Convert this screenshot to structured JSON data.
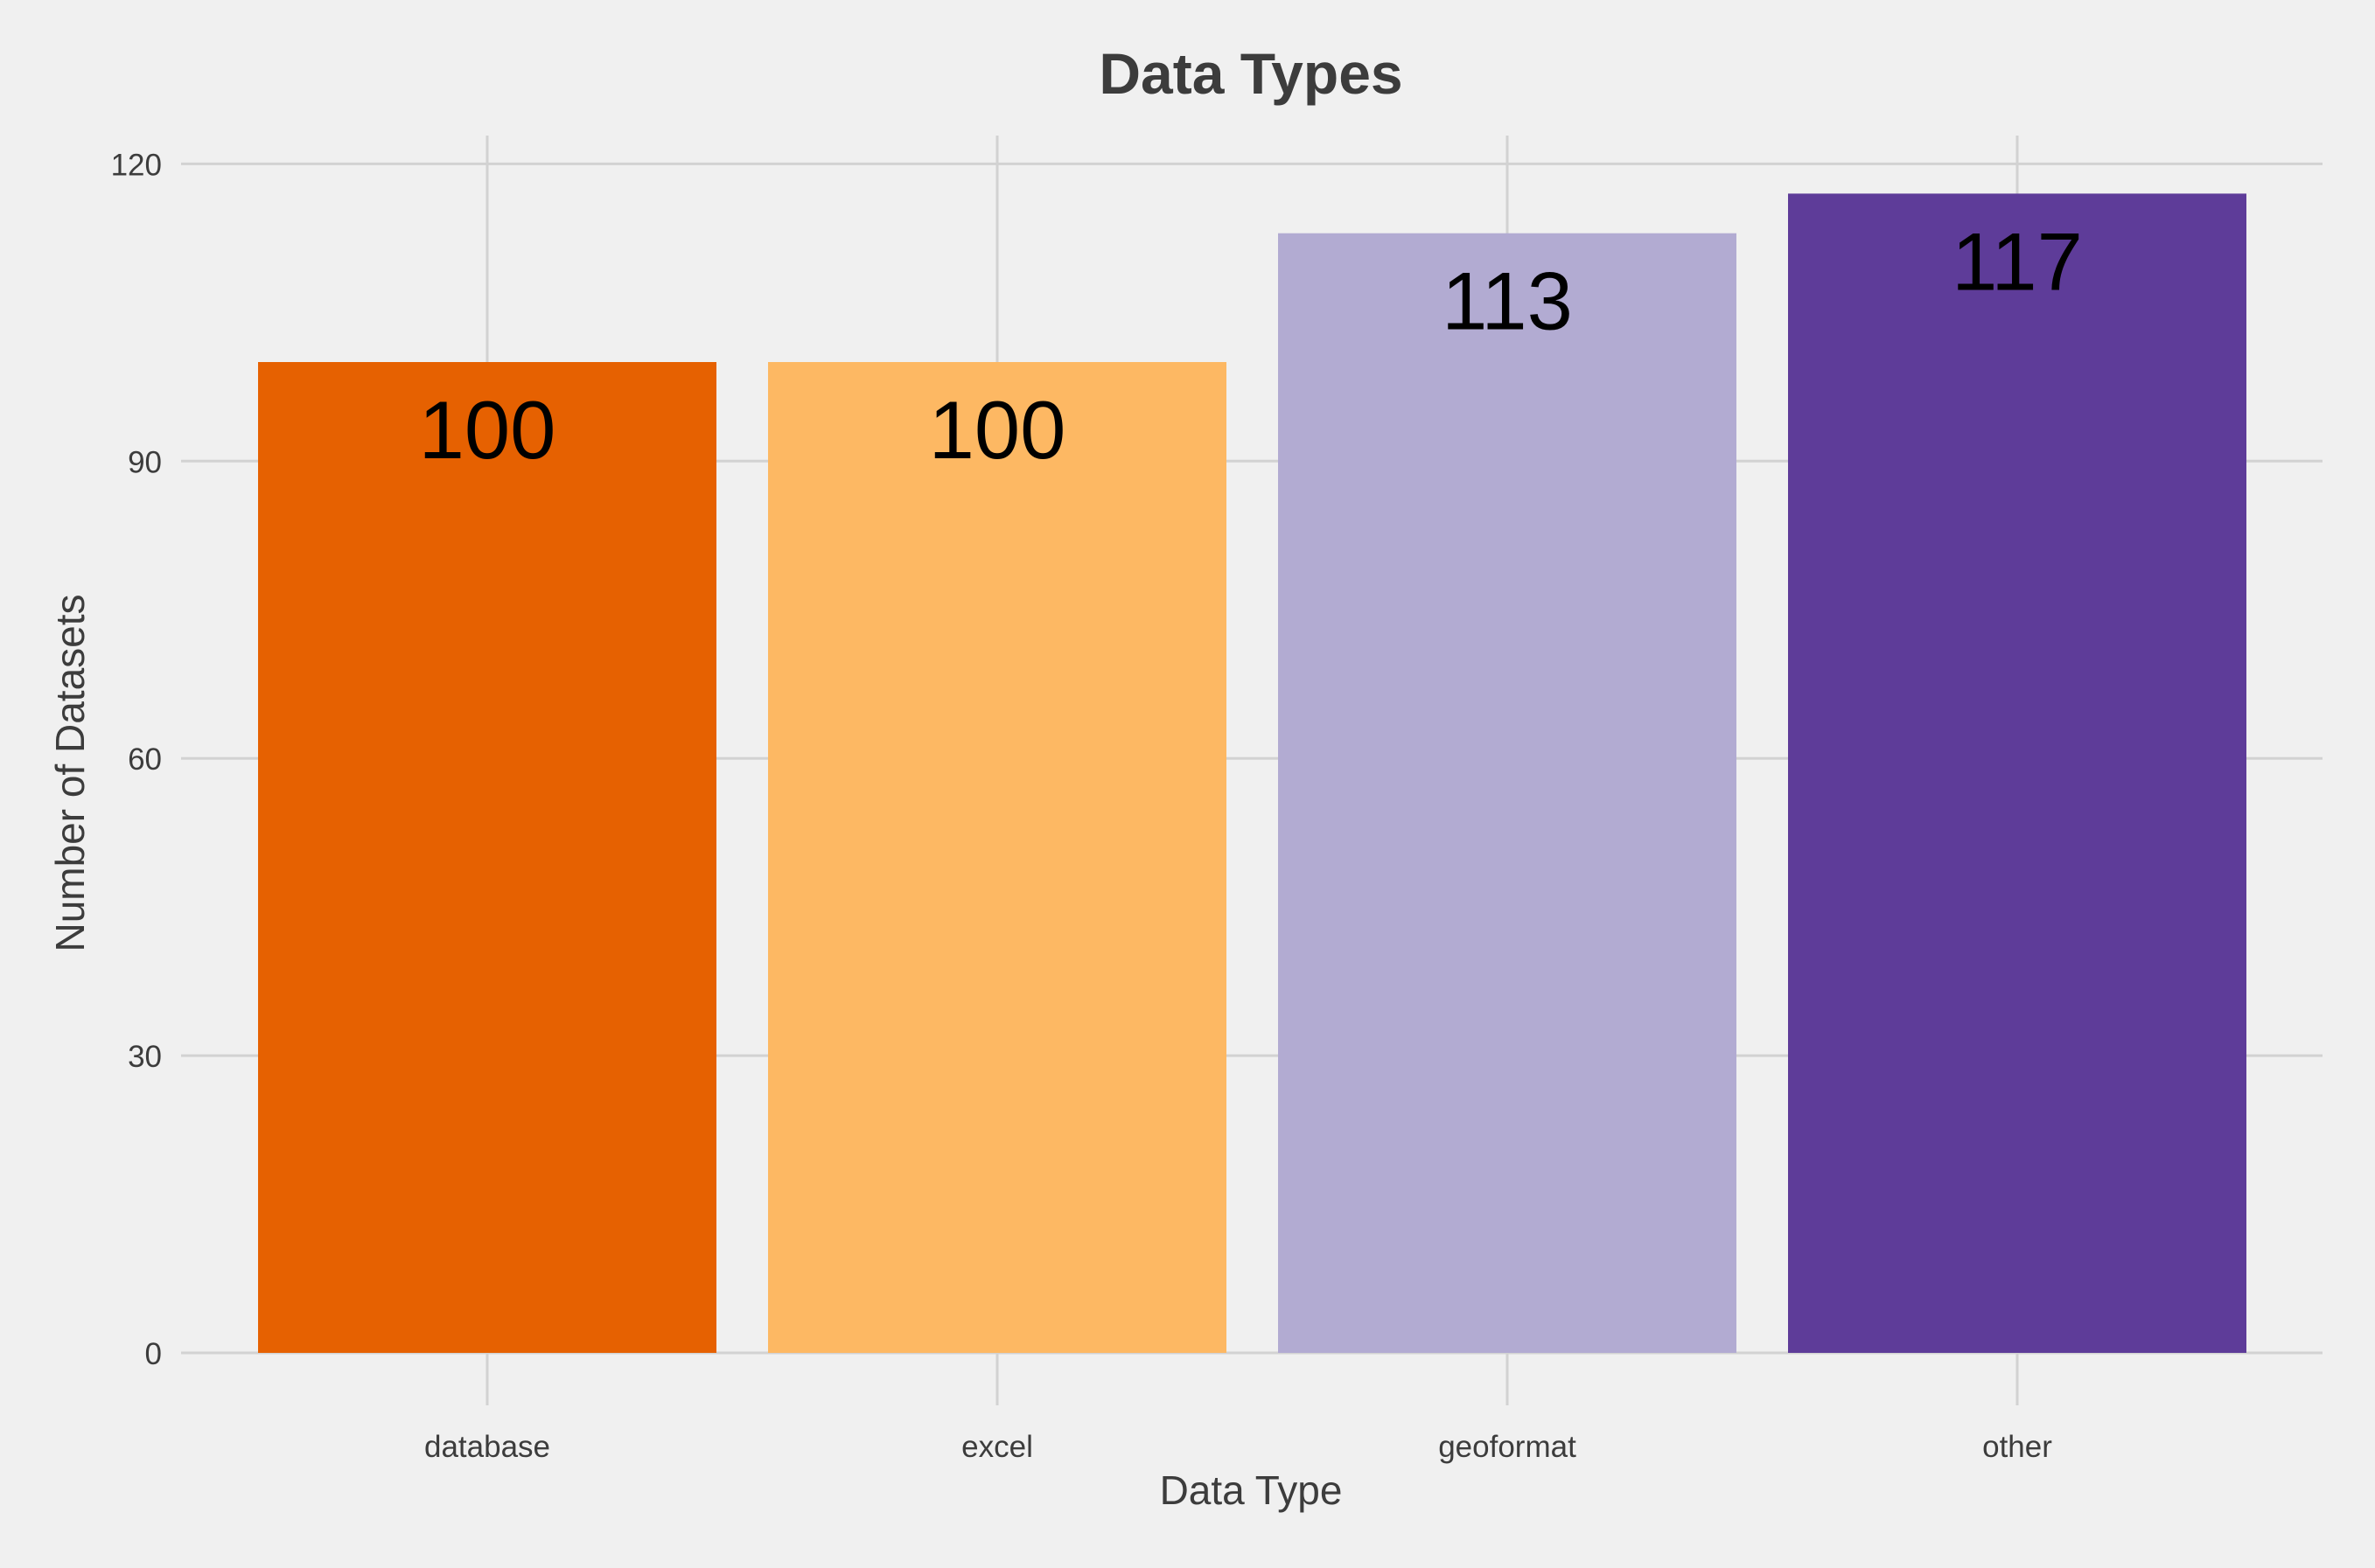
{
  "chart_data": {
    "type": "bar",
    "title": "Data Types",
    "xlabel": "Data Type",
    "ylabel": "Number of Datasets",
    "categories": [
      "database",
      "excel",
      "geoformat",
      "other"
    ],
    "values": [
      100,
      100,
      113,
      117
    ],
    "data_labels": [
      "100",
      "100",
      "113",
      "117"
    ],
    "colors": [
      "#e66101",
      "#fdb863",
      "#b2abd2",
      "#5e3c99"
    ],
    "ylim": [
      0,
      123
    ],
    "yticks": [
      0,
      30,
      60,
      90,
      120
    ],
    "grid": true,
    "legend": "none",
    "background": "#f0f0f0",
    "grid_color": "#d2d2d2"
  }
}
